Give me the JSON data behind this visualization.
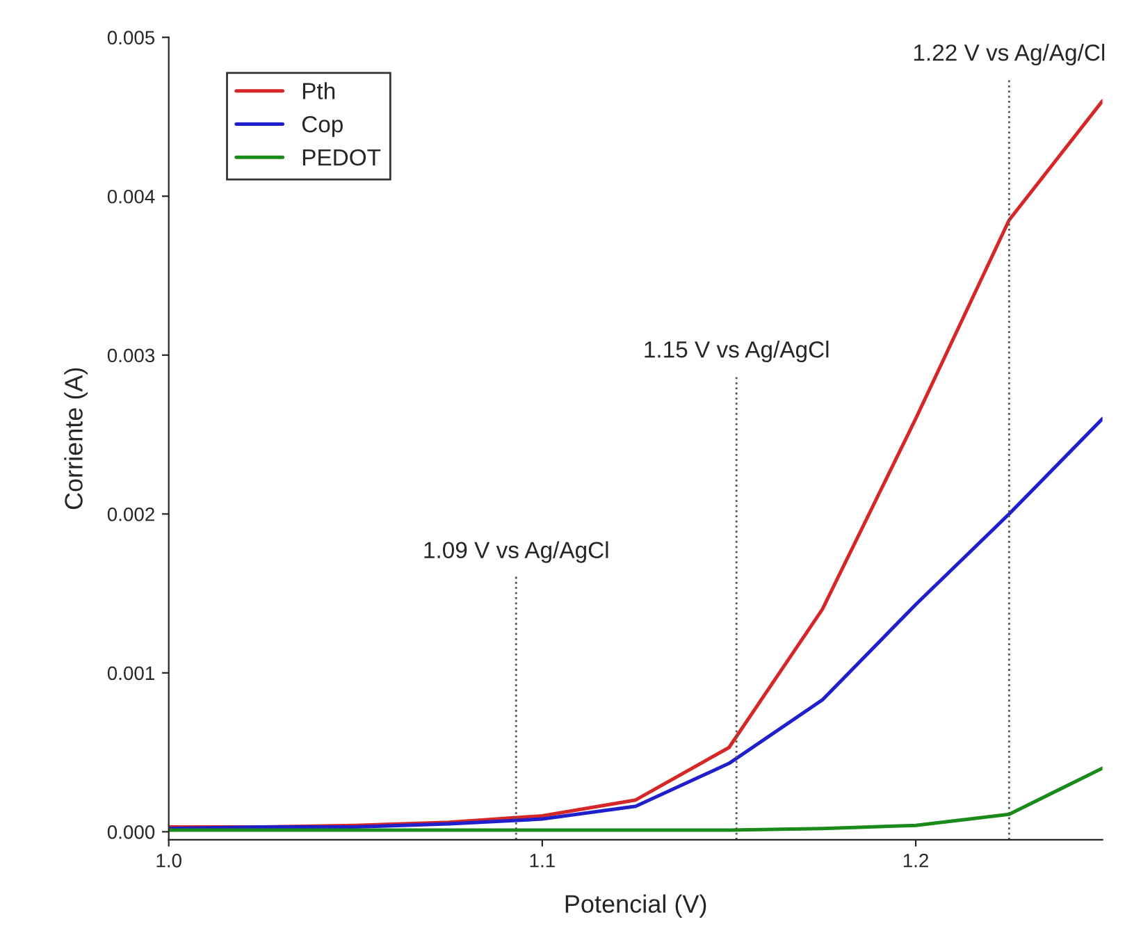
{
  "chart_data": {
    "type": "line",
    "xlabel": "Potencial (V)",
    "ylabel": "Corriente (A)",
    "x": [
      1.0,
      1.025,
      1.05,
      1.075,
      1.1,
      1.125,
      1.15,
      1.175,
      1.2,
      1.225,
      1.25
    ],
    "series": [
      {
        "name": "Pth",
        "color": "#d62728",
        "values": [
          3e-05,
          3e-05,
          4e-05,
          6e-05,
          0.0001,
          0.0002,
          0.00053,
          0.0014,
          0.0026,
          0.00385,
          0.0046
        ]
      },
      {
        "name": "Cop",
        "color": "#1f1fcc",
        "values": [
          2e-05,
          3e-05,
          3e-05,
          5e-05,
          8e-05,
          0.00016,
          0.00043,
          0.00083,
          0.00143,
          0.002,
          0.0026
        ]
      },
      {
        "name": "PEDOT",
        "color": "#1a8a1a",
        "values": [
          1e-05,
          1e-05,
          1e-05,
          1e-05,
          1e-05,
          1e-05,
          1e-05,
          2e-05,
          4e-05,
          0.00011,
          0.0004
        ]
      }
    ],
    "xlim": [
      1.0,
      1.25
    ],
    "ylim": [
      -5e-05,
      0.005
    ],
    "xticks": [
      {
        "value": 1.0,
        "label": "1.0"
      },
      {
        "value": 1.1,
        "label": "1.1"
      },
      {
        "value": 1.2,
        "label": "1.2"
      }
    ],
    "yticks": [
      {
        "value": 0,
        "label": "0.000"
      },
      {
        "value": 0.001,
        "label": "0.001"
      },
      {
        "value": 0.002,
        "label": "0.002"
      },
      {
        "value": 0.003,
        "label": "0.003"
      },
      {
        "value": 0.004,
        "label": "0.004"
      },
      {
        "value": 0.005,
        "label": "0.005"
      }
    ],
    "ref_lines": [
      {
        "axis": "x",
        "value": 1.093,
        "label": "1.09 V vs Ag/AgCl",
        "line_style": "dotted",
        "color": "#555555"
      },
      {
        "axis": "x",
        "value": 1.152,
        "label": "1.15 V vs Ag/AgCl",
        "line_style": "dotted",
        "color": "#555555"
      },
      {
        "axis": "x",
        "value": 1.225,
        "label": "1.22 V vs Ag/Ag/Cl",
        "line_style": "dotted",
        "color": "#555555"
      }
    ],
    "legend": "top left",
    "grid": false,
    "marker": "none",
    "line_style": "solid"
  }
}
